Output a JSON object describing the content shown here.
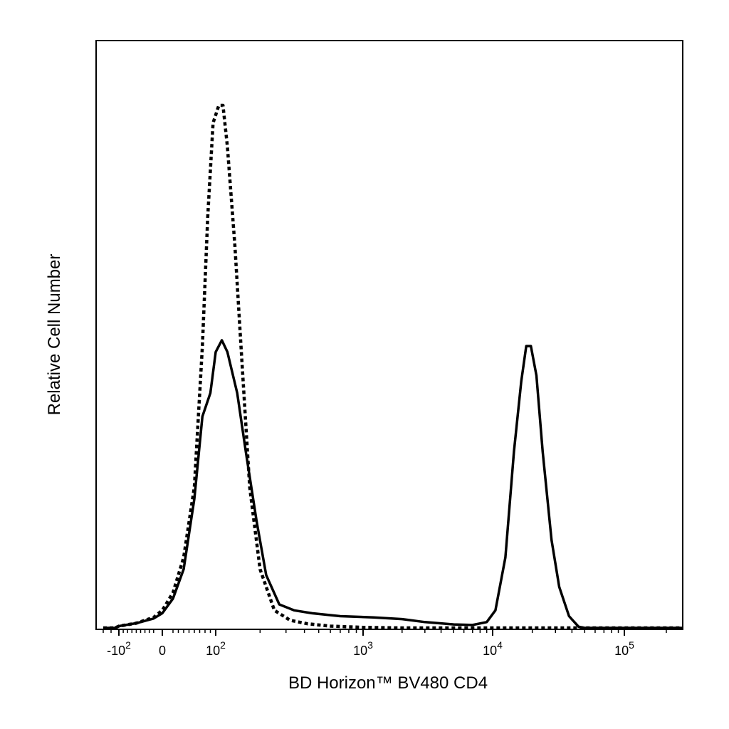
{
  "chart_data": {
    "type": "line",
    "title": "",
    "xlabel": "BD Horizon™ BV480 CD4",
    "ylabel": "Relative Cell Number",
    "x_scale": "biexponential",
    "x_tick_labels": [
      {
        "base": "-10",
        "exp": "2",
        "value": -100
      },
      {
        "base": "0",
        "exp": "",
        "value": 0
      },
      {
        "base": "10",
        "exp": "2",
        "value": 100
      },
      {
        "base": "10",
        "exp": "3",
        "value": 1000
      },
      {
        "base": "10",
        "exp": "4",
        "value": 10000
      },
      {
        "base": "10",
        "exp": "5",
        "value": 100000
      }
    ],
    "xlim": [
      -300,
      262144
    ],
    "ylim": [
      0,
      100
    ],
    "grid": false,
    "legend": "none",
    "series": [
      {
        "style": "dotted",
        "color": "#000000",
        "points": [
          [
            -300,
            0
          ],
          [
            -150,
            0
          ],
          [
            -100,
            0.3
          ],
          [
            -60,
            0.8
          ],
          [
            -20,
            1.8
          ],
          [
            0,
            3
          ],
          [
            20,
            6
          ],
          [
            40,
            12
          ],
          [
            60,
            24
          ],
          [
            75,
            48
          ],
          [
            85,
            70
          ],
          [
            95,
            86
          ],
          [
            105,
            89
          ],
          [
            112,
            89
          ],
          [
            120,
            82
          ],
          [
            135,
            65
          ],
          [
            150,
            46
          ],
          [
            170,
            24
          ],
          [
            200,
            10
          ],
          [
            250,
            3
          ],
          [
            320,
            1.3
          ],
          [
            420,
            0.7
          ],
          [
            600,
            0.3
          ],
          [
            1000,
            0.1
          ],
          [
            2000,
            0
          ],
          [
            10000,
            0
          ],
          [
            262144,
            0
          ]
        ]
      },
      {
        "style": "solid",
        "color": "#000000",
        "points": [
          [
            -300,
            0
          ],
          [
            -150,
            0
          ],
          [
            -100,
            0.3
          ],
          [
            -60,
            0.8
          ],
          [
            -20,
            1.6
          ],
          [
            0,
            2.5
          ],
          [
            20,
            5
          ],
          [
            40,
            10
          ],
          [
            60,
            22
          ],
          [
            75,
            36
          ],
          [
            90,
            40
          ],
          [
            100,
            47
          ],
          [
            110,
            49
          ],
          [
            120,
            47
          ],
          [
            140,
            40
          ],
          [
            160,
            30
          ],
          [
            190,
            18
          ],
          [
            220,
            9
          ],
          [
            270,
            4
          ],
          [
            340,
            3
          ],
          [
            450,
            2.5
          ],
          [
            700,
            2
          ],
          [
            1200,
            1.8
          ],
          [
            2000,
            1.5
          ],
          [
            3000,
            1
          ],
          [
            5000,
            0.6
          ],
          [
            7000,
            0.5
          ],
          [
            9000,
            1
          ],
          [
            10500,
            3
          ],
          [
            12500,
            12
          ],
          [
            14500,
            30
          ],
          [
            16500,
            42
          ],
          [
            18000,
            48
          ],
          [
            19500,
            48
          ],
          [
            21500,
            43
          ],
          [
            24000,
            30
          ],
          [
            28000,
            15
          ],
          [
            32000,
            7
          ],
          [
            38000,
            2
          ],
          [
            45000,
            0.2
          ],
          [
            50000,
            0
          ],
          [
            262144,
            0
          ]
        ]
      }
    ]
  }
}
